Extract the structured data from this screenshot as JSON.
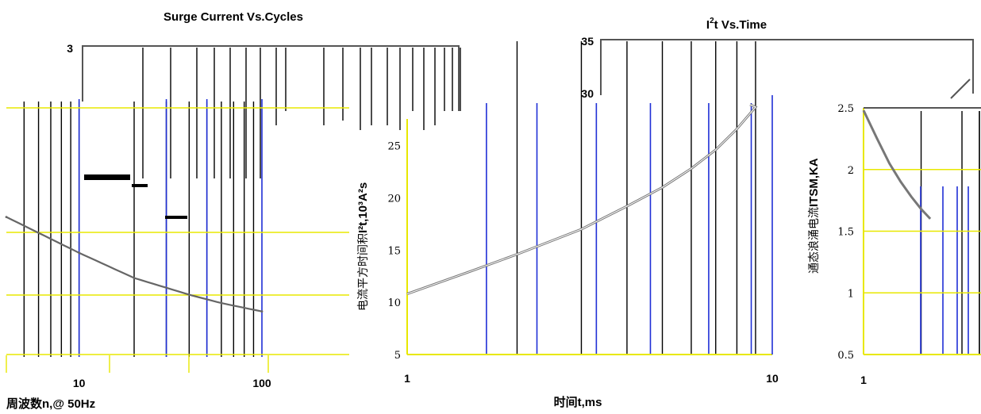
{
  "chart_data": [
    {
      "type": "line",
      "title": "Surge Current Vs.Cycles",
      "xlabel": "周波数n,@ 50Hz",
      "ylabel": "",
      "xscale": "log",
      "xlim": [
        4,
        100
      ],
      "ylim": [
        0.4,
        3
      ],
      "x_tick_labels": [
        "10",
        "100"
      ],
      "y_tick_labels": [
        "3"
      ],
      "grid": true,
      "series": [
        {
          "x": [
            4,
            10,
            20,
            40,
            60,
            100
          ],
          "y": [
            1.57,
            1.27,
            1.06,
            0.92,
            0.85,
            0.78
          ]
        }
      ]
    },
    {
      "type": "line",
      "title": "I²t  Vs.Time",
      "title_main": "I",
      "title_sup": "2",
      "title_rest": "t  Vs.Time",
      "xlabel": "时间t,ms",
      "ylabel": "电流平方时间积I²t,10³A²s",
      "ylabel_cn": "电流平方时间积",
      "ylabel_tail": "I²t,10³A²s",
      "xscale": "log",
      "xlim": [
        1,
        10
      ],
      "ylim": [
        5,
        35
      ],
      "x_tick_labels": [
        "1",
        "10"
      ],
      "y_tick_labels": [
        "35",
        "30",
        "25",
        "20",
        "15",
        "10",
        "5"
      ],
      "grid": true,
      "series": [
        {
          "x": [
            1,
            1.5,
            2,
            3,
            4,
            5,
            6,
            7,
            8,
            9,
            10
          ],
          "y": [
            10.8,
            13.0,
            14.6,
            17.0,
            19.2,
            21.0,
            22.8,
            24.6,
            26.6,
            28.7,
            30.8
          ]
        }
      ]
    },
    {
      "type": "line",
      "title": "",
      "xlabel": "",
      "ylabel": "通态浪涌电流ITSM,KA",
      "ylabel_cn": "通态浪涌电流",
      "ylabel_tail": "ITSM,KA",
      "xscale": "log",
      "xlim": [
        1,
        10
      ],
      "ylim": [
        0.5,
        2.5
      ],
      "x_tick_labels": [
        "1"
      ],
      "y_tick_labels": [
        "2.5",
        "2",
        "1.5",
        "1",
        "0.5"
      ],
      "grid": true,
      "series": [
        {
          "x": [
            1,
            1.1,
            1.2,
            1.3,
            1.4,
            1.5,
            1.6
          ],
          "y": [
            2.48,
            2.25,
            2.05,
            1.9,
            1.78,
            1.68,
            1.6
          ]
        }
      ]
    }
  ]
}
